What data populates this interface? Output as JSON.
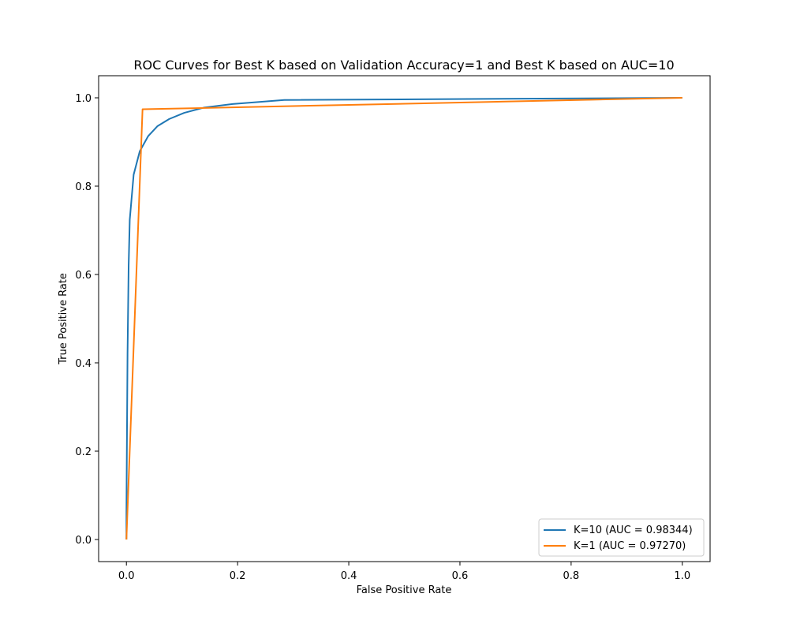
{
  "chart_data": {
    "type": "line",
    "title": "ROC Curves for Best K based on Validation Accuracy=1 and Best K based on AUC=10",
    "xlabel": "False Positive Rate",
    "ylabel": "True Positive Rate",
    "xlim": [
      -0.05,
      1.05
    ],
    "ylim": [
      -0.05,
      1.05
    ],
    "xticks": [
      0.0,
      0.2,
      0.4,
      0.6,
      0.8,
      1.0
    ],
    "yticks": [
      0.0,
      0.2,
      0.4,
      0.6,
      0.8,
      1.0
    ],
    "xtick_labels": [
      "0.0",
      "0.2",
      "0.4",
      "0.6",
      "0.8",
      "1.0"
    ],
    "ytick_labels": [
      "0.0",
      "0.2",
      "0.4",
      "0.6",
      "0.8",
      "1.0"
    ],
    "grid": false,
    "legend_position": "lower-right",
    "series": [
      {
        "name": "K=10 (AUC = 0.98344)",
        "color": "#1f77b4",
        "x": [
          0.0,
          0.0,
          0.002,
          0.004,
          0.006,
          0.013,
          0.024,
          0.039,
          0.056,
          0.077,
          0.104,
          0.14,
          0.191,
          0.284,
          1.0
        ],
        "y": [
          0.0,
          0.06,
          0.42,
          0.62,
          0.724,
          0.826,
          0.879,
          0.913,
          0.936,
          0.952,
          0.966,
          0.978,
          0.986,
          0.995,
          1.0
        ]
      },
      {
        "name": "K=1 (AUC = 0.97270)",
        "color": "#ff7f0e",
        "x": [
          0.0,
          0.029,
          1.0
        ],
        "y": [
          0.0,
          0.974,
          1.0
        ]
      }
    ]
  }
}
